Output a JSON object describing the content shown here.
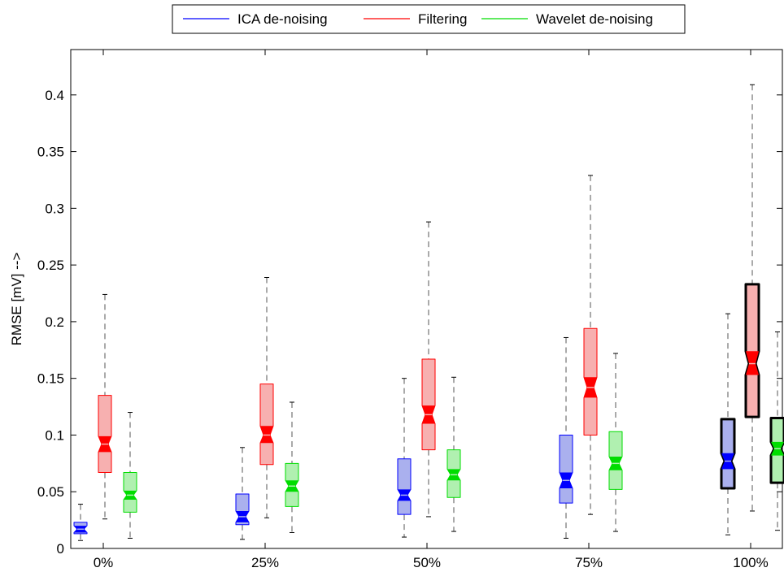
{
  "chart_data": {
    "type": "boxplot",
    "title": "",
    "xlabel": "",
    "ylabel": "RMSE [mV] -->",
    "ylim": [
      0,
      0.44
    ],
    "yticks": [
      0,
      0.05,
      0.1,
      0.15,
      0.2,
      0.25,
      0.3,
      0.35,
      0.4
    ],
    "ytick_labels": [
      "0",
      "0.05",
      "0.1",
      "0.15",
      "0.2",
      "0.25",
      "0.3",
      "0.35",
      "0.4"
    ],
    "categories": [
      "0%",
      "25%",
      "50%",
      "75%",
      "100%"
    ],
    "legend": {
      "placement": "top-center",
      "entries": [
        {
          "name": "ICA de-noising",
          "color": "#0000ff"
        },
        {
          "name": "Filtering",
          "color": "#ff0000"
        },
        {
          "name": "Wavelet de-noising",
          "color": "#00dd00"
        }
      ]
    },
    "series": [
      {
        "name": "ICA de-noising",
        "color": "#0000ff",
        "fill": "#aab0ee",
        "boxes": [
          {
            "min": 0.007,
            "q1": 0.013,
            "median": 0.017,
            "q3": 0.023,
            "max": 0.039,
            "notch": [
              0.014,
              0.02
            ]
          },
          {
            "min": 0.008,
            "q1": 0.021,
            "median": 0.028,
            "q3": 0.048,
            "max": 0.089,
            "notch": [
              0.023,
              0.033
            ]
          },
          {
            "min": 0.01,
            "q1": 0.03,
            "median": 0.047,
            "q3": 0.079,
            "max": 0.15,
            "notch": [
              0.042,
              0.052
            ]
          },
          {
            "min": 0.009,
            "q1": 0.04,
            "median": 0.06,
            "q3": 0.1,
            "max": 0.186,
            "notch": [
              0.053,
              0.067
            ]
          },
          {
            "min": 0.012,
            "q1": 0.053,
            "median": 0.077,
            "q3": 0.114,
            "max": 0.207,
            "notch": [
              0.07,
              0.084
            ]
          }
        ]
      },
      {
        "name": "Filtering",
        "color": "#ff0000",
        "fill": "#f7b0b0",
        "boxes": [
          {
            "min": 0.026,
            "q1": 0.067,
            "median": 0.092,
            "q3": 0.135,
            "max": 0.224,
            "notch": [
              0.085,
              0.099
            ]
          },
          {
            "min": 0.027,
            "q1": 0.074,
            "median": 0.1,
            "q3": 0.145,
            "max": 0.239,
            "notch": [
              0.093,
              0.108
            ]
          },
          {
            "min": 0.028,
            "q1": 0.087,
            "median": 0.118,
            "q3": 0.167,
            "max": 0.288,
            "notch": [
              0.11,
              0.126
            ]
          },
          {
            "min": 0.03,
            "q1": 0.1,
            "median": 0.142,
            "q3": 0.194,
            "max": 0.329,
            "notch": [
              0.133,
              0.151
            ]
          },
          {
            "min": 0.033,
            "q1": 0.116,
            "median": 0.163,
            "q3": 0.233,
            "max": 0.409,
            "notch": [
              0.153,
              0.174
            ]
          }
        ]
      },
      {
        "name": "Wavelet de-noising",
        "color": "#00dd00",
        "fill": "#b0f0b0",
        "boxes": [
          {
            "min": 0.009,
            "q1": 0.032,
            "median": 0.047,
            "q3": 0.067,
            "max": 0.12,
            "notch": [
              0.043,
              0.051
            ]
          },
          {
            "min": 0.014,
            "q1": 0.037,
            "median": 0.055,
            "q3": 0.075,
            "max": 0.129,
            "notch": [
              0.05,
              0.06
            ]
          },
          {
            "min": 0.015,
            "q1": 0.045,
            "median": 0.065,
            "q3": 0.087,
            "max": 0.151,
            "notch": [
              0.06,
              0.07
            ]
          },
          {
            "min": 0.015,
            "q1": 0.052,
            "median": 0.075,
            "q3": 0.103,
            "max": 0.172,
            "notch": [
              0.069,
              0.081
            ]
          },
          {
            "min": 0.016,
            "q1": 0.058,
            "median": 0.088,
            "q3": 0.115,
            "max": 0.191,
            "notch": [
              0.082,
              0.094
            ]
          }
        ]
      }
    ],
    "highlighted_group": "100%"
  }
}
